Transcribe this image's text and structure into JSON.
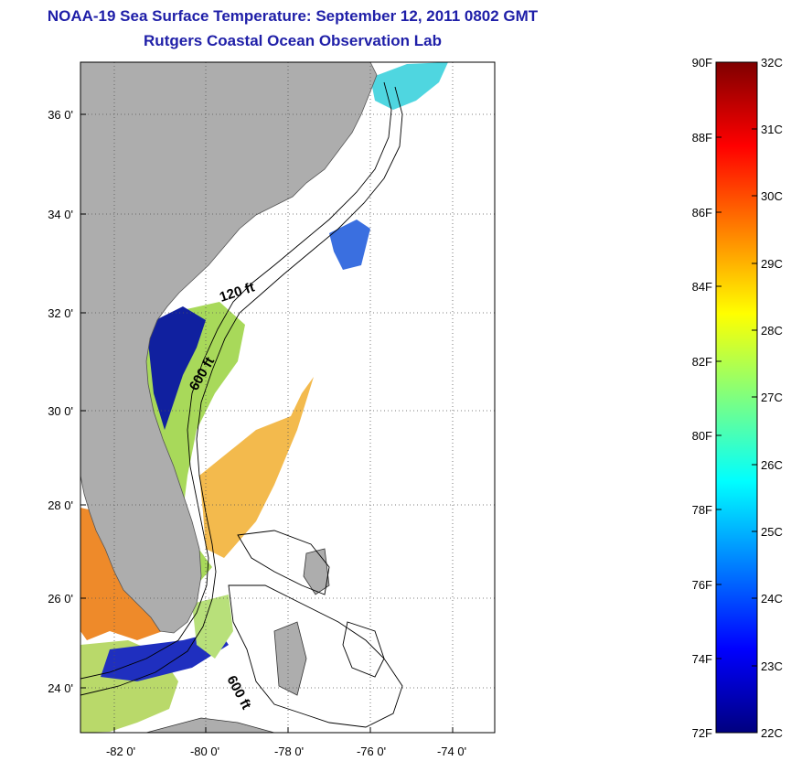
{
  "title": {
    "line1": "NOAA-19 Sea Surface Temperature:  September 12, 2011 0802 GMT",
    "line2": "Rutgers Coastal Ocean Observation Lab"
  },
  "map": {
    "lon_ticks": [
      "-82 0'",
      "-80 0'",
      "-78 0'",
      "-76 0'",
      "-74 0'"
    ],
    "lat_ticks": [
      "36 0'",
      "34 0'",
      "32 0'",
      "30 0'",
      "28 0'",
      "26 0'",
      "24 0'"
    ],
    "contour_labels": [
      "120 ft",
      "600 ft",
      "600 ft"
    ],
    "colors": {
      "land": "#adadad",
      "ocean": "#ffffff",
      "grid": "#555555"
    }
  },
  "colorbar": {
    "f_labels": [
      "90F",
      "88F",
      "86F",
      "84F",
      "82F",
      "80F",
      "78F",
      "76F",
      "74F",
      "72F"
    ],
    "c_labels": [
      "32C",
      "31C",
      "30C",
      "29C",
      "28C",
      "27C",
      "26C",
      "25C",
      "24C",
      "23C",
      "22C"
    ],
    "colors": [
      "#00007f",
      "#0000ff",
      "#007fff",
      "#00ffff",
      "#7fff7f",
      "#ffff00",
      "#ff7f00",
      "#ff0000",
      "#7f0000"
    ]
  }
}
